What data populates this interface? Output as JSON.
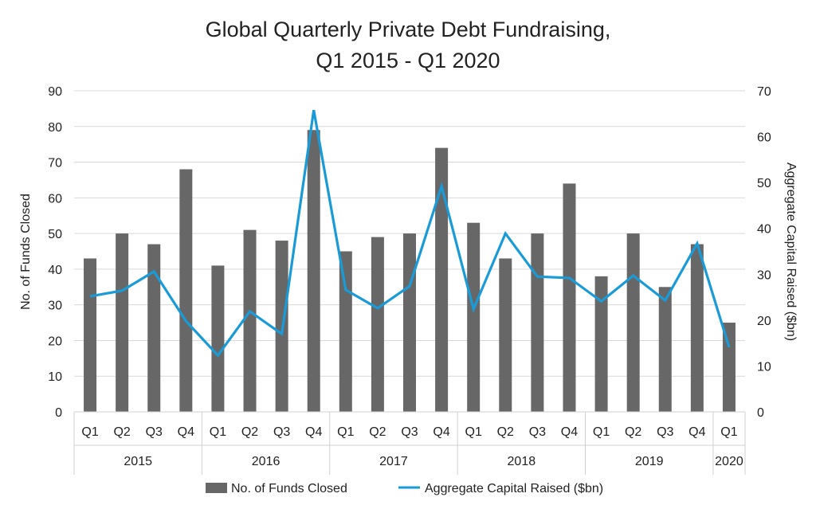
{
  "chart_data": {
    "type": "bar+line",
    "title": [
      "Global Quarterly Private Debt Fundraising,",
      "Q1 2015 - Q1 2020"
    ],
    "ylabel_left": "No. of Funds Closed",
    "ylabel_right": "Aggregate Capital Raised ($bn)",
    "ylim_left": [
      0,
      90
    ],
    "ylim_right": [
      0,
      70
    ],
    "yticks_left": [
      0,
      10,
      20,
      30,
      40,
      50,
      60,
      70,
      80,
      90
    ],
    "yticks_right": [
      0,
      10,
      20,
      30,
      40,
      50,
      60,
      70
    ],
    "grid": true,
    "legend_position": "bottom",
    "groups": [
      {
        "year": "2015",
        "quarters": [
          "Q1",
          "Q2",
          "Q3",
          "Q4"
        ]
      },
      {
        "year": "2016",
        "quarters": [
          "Q1",
          "Q2",
          "Q3",
          "Q4"
        ]
      },
      {
        "year": "2017",
        "quarters": [
          "Q1",
          "Q2",
          "Q3",
          "Q4"
        ]
      },
      {
        "year": "2018",
        "quarters": [
          "Q1",
          "Q2",
          "Q3",
          "Q4"
        ]
      },
      {
        "year": "2019",
        "quarters": [
          "Q1",
          "Q2",
          "Q3",
          "Q4"
        ]
      },
      {
        "year": "2020",
        "quarters": [
          "Q1"
        ]
      }
    ],
    "series": [
      {
        "name": "No. of Funds Closed",
        "type": "bar",
        "axis": "left",
        "color": "#676767",
        "values": [
          43,
          50,
          47,
          68,
          41,
          51,
          48,
          79,
          45,
          49,
          50,
          74,
          53,
          43,
          50,
          64,
          38,
          50,
          35,
          47,
          25
        ]
      },
      {
        "name": "Aggregate Capital Raised ($bn)",
        "type": "line",
        "axis": "right",
        "color": "#1a9bd7",
        "values": [
          25.2,
          26.4,
          30.6,
          19.8,
          12.3,
          21.9,
          17.0,
          65.8,
          26.6,
          22.6,
          27.4,
          49.2,
          22.4,
          38.9,
          29.5,
          29.2,
          24.1,
          29.7,
          24.3,
          36.7,
          14.1
        ]
      }
    ]
  }
}
